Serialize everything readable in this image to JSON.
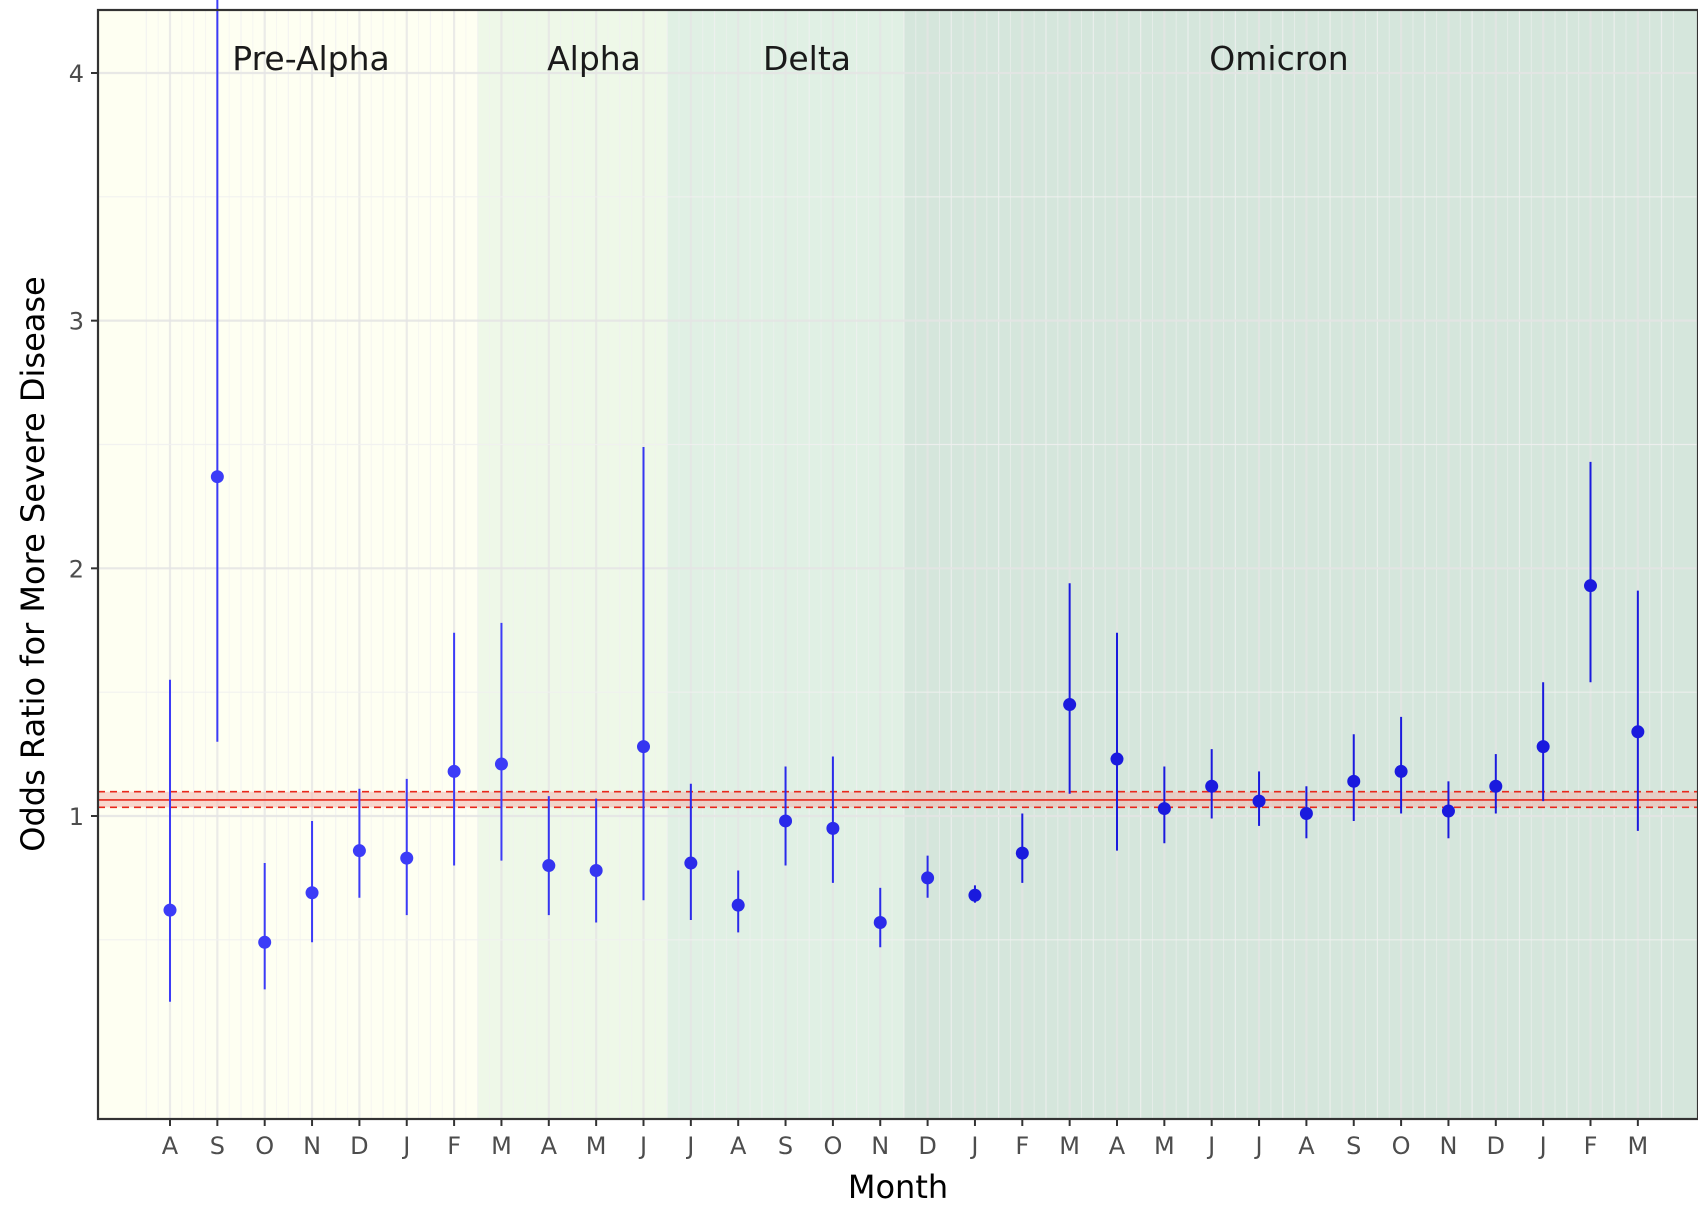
{
  "chart_data": {
    "type": "scatter",
    "title": "",
    "xlabel": "Month",
    "ylabel": "Odds Ratio for More Severe Disease",
    "ylim": [
      0.05,
      4.53
    ],
    "y_ticks": [
      1,
      2,
      3,
      4
    ],
    "grid": true,
    "categories": [
      "A",
      "S",
      "O",
      "N",
      "D",
      "J",
      "F",
      "M",
      "A",
      "M",
      "J",
      "J",
      "A",
      "S",
      "O",
      "N",
      "D",
      "J",
      "F",
      "M",
      "A",
      "M",
      "J",
      "J",
      "A",
      "S",
      "O",
      "N",
      "D",
      "J",
      "F",
      "M"
    ],
    "series": [
      {
        "values": [
          0.62,
          2.37,
          0.49,
          0.69,
          0.86,
          0.83,
          1.18,
          1.21,
          0.8,
          0.78,
          1.28,
          0.81,
          0.64,
          0.98,
          0.95,
          0.57,
          0.75,
          0.68,
          0.85,
          1.45,
          1.23,
          1.03,
          1.12,
          1.06,
          1.01,
          1.14,
          1.18,
          1.02,
          1.12,
          1.28,
          1.93,
          1.34
        ],
        "lower": [
          0.25,
          1.3,
          0.3,
          0.49,
          0.67,
          0.6,
          0.8,
          0.82,
          0.6,
          0.57,
          0.66,
          0.58,
          0.53,
          0.8,
          0.73,
          0.47,
          0.67,
          0.65,
          0.73,
          1.09,
          0.86,
          0.89,
          0.99,
          0.96,
          0.91,
          0.98,
          1.01,
          0.91,
          1.01,
          1.06,
          1.54,
          0.94
        ],
        "upper": [
          1.55,
          4.33,
          0.81,
          0.98,
          1.11,
          1.15,
          1.74,
          1.78,
          1.08,
          1.07,
          2.49,
          1.13,
          0.78,
          1.2,
          1.24,
          0.71,
          0.84,
          0.72,
          1.01,
          1.94,
          1.74,
          1.2,
          1.27,
          1.18,
          1.12,
          1.33,
          1.4,
          1.14,
          1.25,
          1.54,
          2.43,
          1.91
        ],
        "point_colors": [
          "#3c3cf7",
          "#3c3cf7",
          "#3c3cf7",
          "#3c3cf7",
          "#3c3cf7",
          "#3c3cf7",
          "#3c3cf7",
          "#3c3cf7",
          "#3535f0",
          "#3535f0",
          "#3535f0",
          "#2a2aea",
          "#2a2aea",
          "#2a2aea",
          "#2a2aea",
          "#2a2aea",
          "#2a2aea",
          "#1a1ade",
          "#1a1ade",
          "#1a1ade",
          "#1a1ade",
          "#1a1ade",
          "#1a1ade",
          "#1a1ade",
          "#1a1ade",
          "#1a1ade",
          "#1a1ade",
          "#1a1ade",
          "#1a1ade",
          "#1a1ade",
          "#1a1ade",
          "#1a1ade"
        ]
      }
    ],
    "reference": {
      "value": 1.065,
      "lower": 1.035,
      "upper": 1.098,
      "color": "#e8281c",
      "band_color": "#f2b8b0"
    },
    "eras": [
      {
        "label": "Pre-Alpha",
        "start": 0,
        "end": 7,
        "color": "#fefff2"
      },
      {
        "label": "Alpha",
        "start": 7,
        "end": 11,
        "color": "#eef8e8"
      },
      {
        "label": "Delta",
        "start": 11,
        "end": 16,
        "color": "#e0f0e4"
      },
      {
        "label": "Omicron",
        "start": 16,
        "end": 32,
        "color": "#d5e6dc"
      }
    ]
  },
  "colors": {
    "point": "#2a2aea",
    "errorbar": "#2a2aea",
    "axis": "#333333",
    "grid_major": "#e4e4e4",
    "grid_minor": "#f0f0f0"
  }
}
